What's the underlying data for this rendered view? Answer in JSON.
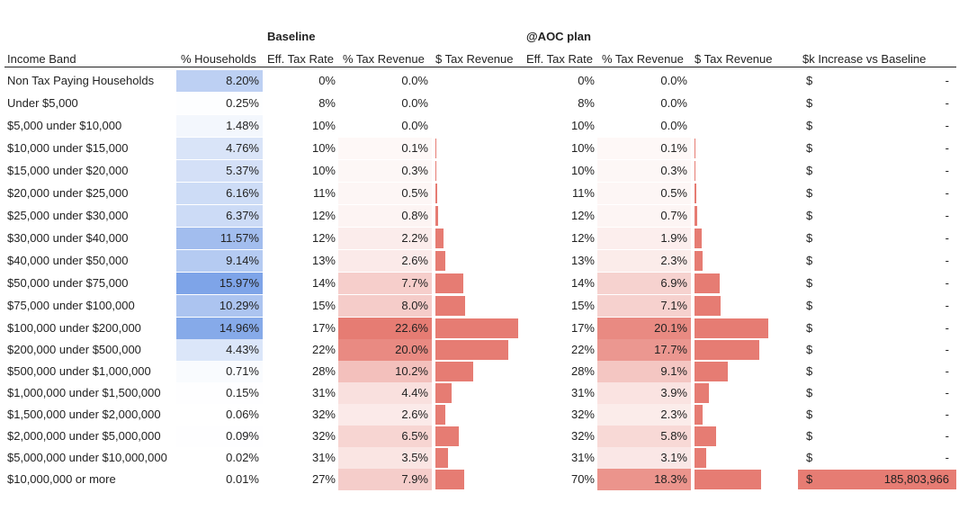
{
  "headers": {
    "baseline": "Baseline",
    "aoc": "@AOC plan",
    "income_band": "Income Band",
    "households": "% Households",
    "b_eff": "Eff. Tax Rate",
    "b_pct": "% Tax Revenue",
    "b_dollar": "$ Tax Revenue",
    "a_eff": "Eff. Tax Rate",
    "a_pct": "% Tax Revenue",
    "a_dollar": "$ Tax Revenue",
    "increase": "$k Increase vs Baseline"
  },
  "colors": {
    "blue": "#7ea4e8",
    "red": "#e67c73",
    "bar": "#e67c73"
  },
  "chart_data": {
    "type": "table",
    "columns": [
      "Income Band",
      "% Households",
      "Baseline Eff. Tax Rate",
      "Baseline % Tax Revenue",
      "@AOC plan Eff. Tax Rate",
      "@AOC plan % Tax Revenue",
      "$k Increase vs Baseline"
    ],
    "rows": [
      {
        "band": "Non Tax Paying Households",
        "hh": "8.20%",
        "hh_v": 8.2,
        "b_eff": "0%",
        "b_pct": "0.0%",
        "b_v": 0.0,
        "a_eff": "0%",
        "a_pct": "0.0%",
        "a_v": 0.0,
        "cur": "$",
        "inc": "-",
        "inc_v": 0
      },
      {
        "band": "Under $5,000",
        "hh": "0.25%",
        "hh_v": 0.25,
        "b_eff": "8%",
        "b_pct": "0.0%",
        "b_v": 0.0,
        "a_eff": "8%",
        "a_pct": "0.0%",
        "a_v": 0.0,
        "cur": "$",
        "inc": "-",
        "inc_v": 0
      },
      {
        "band": "$5,000 under $10,000",
        "hh": "1.48%",
        "hh_v": 1.48,
        "b_eff": "10%",
        "b_pct": "0.0%",
        "b_v": 0.0,
        "a_eff": "10%",
        "a_pct": "0.0%",
        "a_v": 0.0,
        "cur": "$",
        "inc": "-",
        "inc_v": 0
      },
      {
        "band": "$10,000 under $15,000",
        "hh": "4.76%",
        "hh_v": 4.76,
        "b_eff": "10%",
        "b_pct": "0.1%",
        "b_v": 0.1,
        "a_eff": "10%",
        "a_pct": "0.1%",
        "a_v": 0.1,
        "cur": "$",
        "inc": "-",
        "inc_v": 0
      },
      {
        "band": "$15,000 under $20,000",
        "hh": "5.37%",
        "hh_v": 5.37,
        "b_eff": "10%",
        "b_pct": "0.3%",
        "b_v": 0.3,
        "a_eff": "10%",
        "a_pct": "0.3%",
        "a_v": 0.3,
        "cur": "$",
        "inc": "-",
        "inc_v": 0
      },
      {
        "band": "$20,000 under $25,000",
        "hh": "6.16%",
        "hh_v": 6.16,
        "b_eff": "11%",
        "b_pct": "0.5%",
        "b_v": 0.5,
        "a_eff": "11%",
        "a_pct": "0.5%",
        "a_v": 0.5,
        "cur": "$",
        "inc": "-",
        "inc_v": 0
      },
      {
        "band": "$25,000 under $30,000",
        "hh": "6.37%",
        "hh_v": 6.37,
        "b_eff": "12%",
        "b_pct": "0.8%",
        "b_v": 0.8,
        "a_eff": "12%",
        "a_pct": "0.7%",
        "a_v": 0.7,
        "cur": "$",
        "inc": "-",
        "inc_v": 0
      },
      {
        "band": "$30,000 under $40,000",
        "hh": "11.57%",
        "hh_v": 11.57,
        "b_eff": "12%",
        "b_pct": "2.2%",
        "b_v": 2.2,
        "a_eff": "12%",
        "a_pct": "1.9%",
        "a_v": 1.9,
        "cur": "$",
        "inc": "-",
        "inc_v": 0
      },
      {
        "band": "$40,000 under $50,000",
        "hh": "9.14%",
        "hh_v": 9.14,
        "b_eff": "13%",
        "b_pct": "2.6%",
        "b_v": 2.6,
        "a_eff": "13%",
        "a_pct": "2.3%",
        "a_v": 2.3,
        "cur": "$",
        "inc": "-",
        "inc_v": 0
      },
      {
        "band": "$50,000 under $75,000",
        "hh": "15.97%",
        "hh_v": 15.97,
        "b_eff": "14%",
        "b_pct": "7.7%",
        "b_v": 7.7,
        "a_eff": "14%",
        "a_pct": "6.9%",
        "a_v": 6.9,
        "cur": "$",
        "inc": "-",
        "inc_v": 0
      },
      {
        "band": "$75,000 under $100,000",
        "hh": "10.29%",
        "hh_v": 10.29,
        "b_eff": "15%",
        "b_pct": "8.0%",
        "b_v": 8.0,
        "a_eff": "15%",
        "a_pct": "7.1%",
        "a_v": 7.1,
        "cur": "$",
        "inc": "-",
        "inc_v": 0
      },
      {
        "band": "$100,000 under $200,000",
        "hh": "14.96%",
        "hh_v": 14.96,
        "b_eff": "17%",
        "b_pct": "22.6%",
        "b_v": 22.6,
        "a_eff": "17%",
        "a_pct": "20.1%",
        "a_v": 20.1,
        "cur": "$",
        "inc": "-",
        "inc_v": 0
      },
      {
        "band": "$200,000 under $500,000",
        "hh": "4.43%",
        "hh_v": 4.43,
        "b_eff": "22%",
        "b_pct": "20.0%",
        "b_v": 20.0,
        "a_eff": "22%",
        "a_pct": "17.7%",
        "a_v": 17.7,
        "cur": "$",
        "inc": "-",
        "inc_v": 0
      },
      {
        "band": "$500,000 under $1,000,000",
        "hh": "0.71%",
        "hh_v": 0.71,
        "b_eff": "28%",
        "b_pct": "10.2%",
        "b_v": 10.2,
        "a_eff": "28%",
        "a_pct": "9.1%",
        "a_v": 9.1,
        "cur": "$",
        "inc": "-",
        "inc_v": 0
      },
      {
        "band": "$1,000,000 under $1,500,000",
        "hh": "0.15%",
        "hh_v": 0.15,
        "b_eff": "31%",
        "b_pct": "4.4%",
        "b_v": 4.4,
        "a_eff": "31%",
        "a_pct": "3.9%",
        "a_v": 3.9,
        "cur": "$",
        "inc": "-",
        "inc_v": 0
      },
      {
        "band": "$1,500,000 under $2,000,000",
        "hh": "0.06%",
        "hh_v": 0.06,
        "b_eff": "32%",
        "b_pct": "2.6%",
        "b_v": 2.6,
        "a_eff": "32%",
        "a_pct": "2.3%",
        "a_v": 2.3,
        "cur": "$",
        "inc": "-",
        "inc_v": 0
      },
      {
        "band": "$2,000,000 under $5,000,000",
        "hh": "0.09%",
        "hh_v": 0.09,
        "b_eff": "32%",
        "b_pct": "6.5%",
        "b_v": 6.5,
        "a_eff": "32%",
        "a_pct": "5.8%",
        "a_v": 5.8,
        "cur": "$",
        "inc": "-",
        "inc_v": 0
      },
      {
        "band": "$5,000,000 under $10,000,000",
        "hh": "0.02%",
        "hh_v": 0.02,
        "b_eff": "31%",
        "b_pct": "3.5%",
        "b_v": 3.5,
        "a_eff": "31%",
        "a_pct": "3.1%",
        "a_v": 3.1,
        "cur": "$",
        "inc": "-",
        "inc_v": 0
      },
      {
        "band": "$10,000,000 or more",
        "hh": "0.01%",
        "hh_v": 0.01,
        "b_eff": "27%",
        "b_pct": "7.9%",
        "b_v": 7.9,
        "a_eff": "70%",
        "a_pct": "18.3%",
        "a_v": 18.3,
        "cur": "$",
        "inc": "185,803,966",
        "inc_v": 185803966
      }
    ]
  }
}
